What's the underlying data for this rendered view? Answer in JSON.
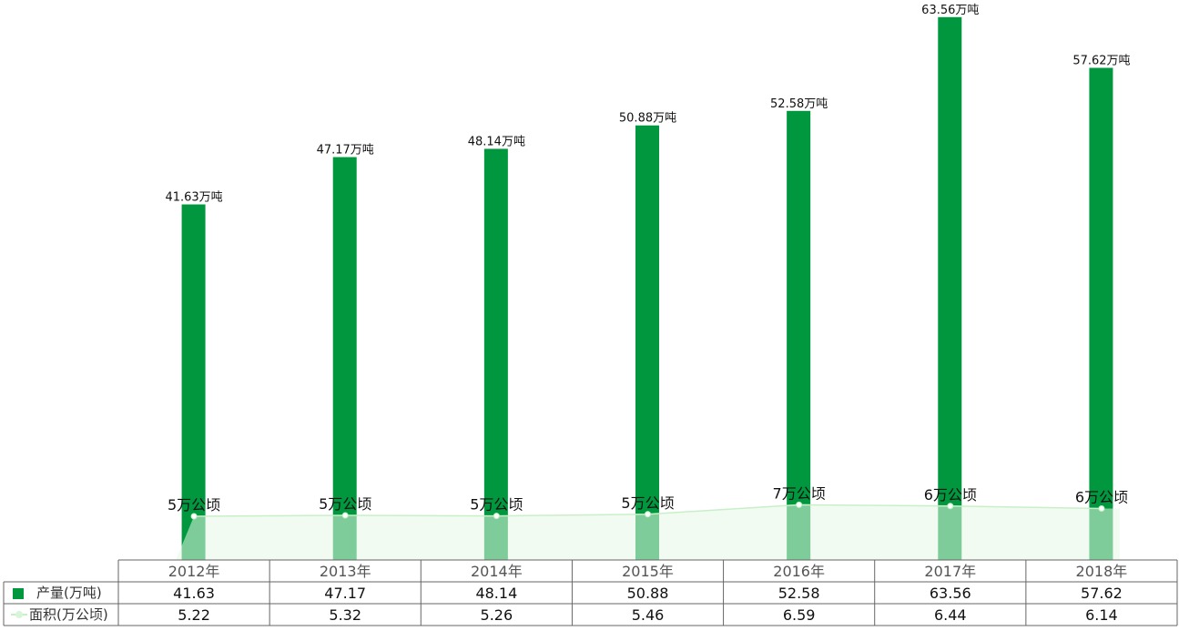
{
  "chart_data": {
    "type": "bar",
    "categories": [
      "2012年",
      "2013年",
      "2014年",
      "2015年",
      "2016年",
      "2017年",
      "2018年"
    ],
    "series": [
      {
        "name": "产量(万吨)",
        "type": "bar",
        "values": [
          41.63,
          47.17,
          48.14,
          50.88,
          52.58,
          63.56,
          57.62
        ],
        "data_labels": [
          "41.63万吨",
          "47.17万吨",
          "48.14万吨",
          "50.88万吨",
          "52.58万吨",
          "63.56万吨",
          "57.62万吨"
        ],
        "color": "#00973f"
      },
      {
        "name": "面积(万公顷)",
        "type": "area",
        "values": [
          5.22,
          5.32,
          5.26,
          5.46,
          6.59,
          6.44,
          6.14
        ],
        "data_labels": [
          "5万公顷",
          "5万公顷",
          "5万公顷",
          "5万公顷",
          "7万公顷",
          "6万公顷",
          "6万公顷"
        ],
        "color": "#d9f5d9"
      }
    ],
    "table": {
      "rows": [
        {
          "label": "产量(万吨)",
          "values": [
            "41.63",
            "47.17",
            "48.14",
            "50.88",
            "52.58",
            "63.56",
            "57.62"
          ]
        },
        {
          "label": "面积(万公顷)",
          "values": [
            "5.22",
            "5.32",
            "5.26",
            "5.46",
            "6.59",
            "6.44",
            "6.14"
          ]
        }
      ]
    },
    "grid": false,
    "legend": "data-table"
  }
}
